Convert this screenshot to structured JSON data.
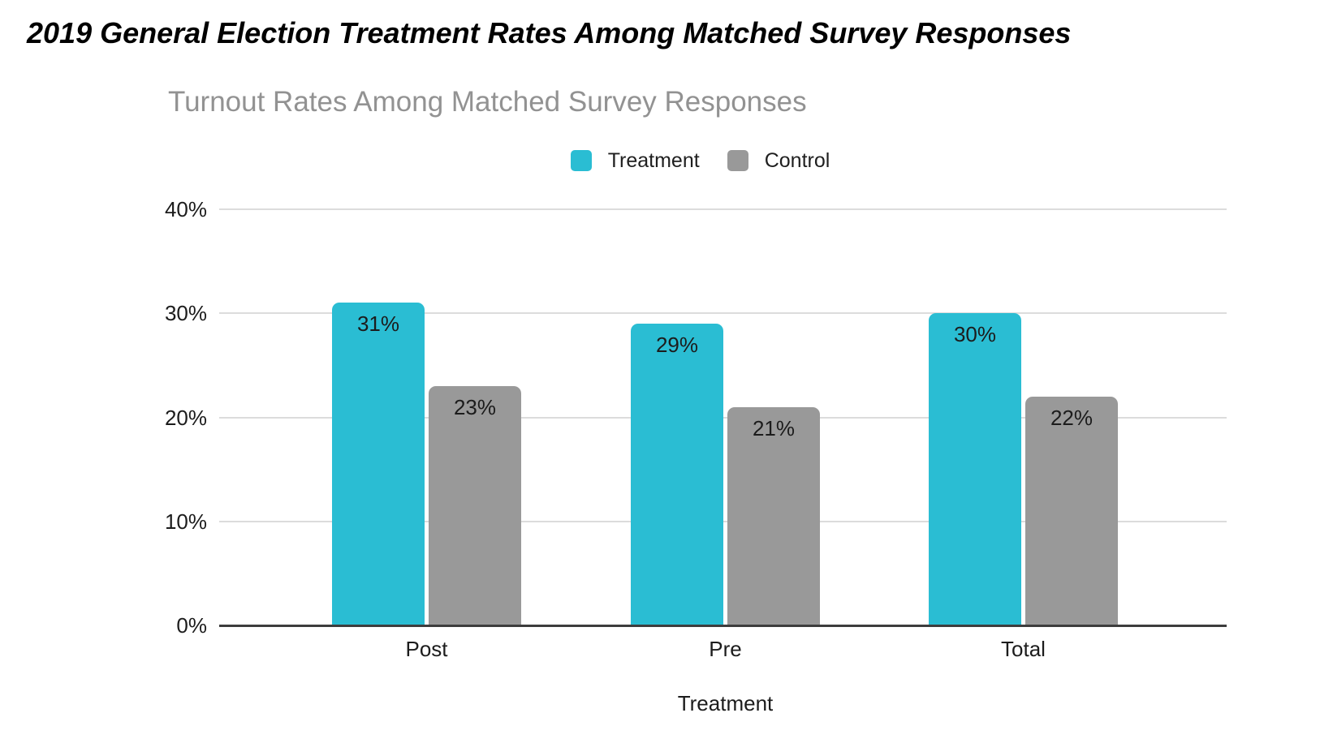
{
  "page": {
    "title": "2019 General Election Treatment Rates Among Matched Survey Responses",
    "background_color": "#ffffff"
  },
  "chart_data": {
    "type": "bar",
    "title": "Turnout Rates Among Matched Survey Responses",
    "title_color": "#929292",
    "categories": [
      "Post",
      "Pre",
      "Total"
    ],
    "series": [
      {
        "name": "Treatment",
        "color": "#2abdd3",
        "values": [
          31,
          29,
          30
        ],
        "value_labels": [
          "31%",
          "29%",
          "30%"
        ]
      },
      {
        "name": "Control",
        "color": "#999999",
        "values": [
          23,
          21,
          22
        ],
        "value_labels": [
          "23%",
          "21%",
          "22%"
        ]
      }
    ],
    "xlabel": "Treatment",
    "ylabel": "",
    "ylim": [
      0,
      40
    ],
    "yticks": [
      {
        "value": 0,
        "label": "0%"
      },
      {
        "value": 10,
        "label": "10%"
      },
      {
        "value": 20,
        "label": "20%"
      },
      {
        "value": 30,
        "label": "30%"
      },
      {
        "value": 40,
        "label": "40%"
      }
    ],
    "grid": true,
    "gridline_color": "#dcdcdc",
    "axis_line_color": "#3d3d3d",
    "text_color": "#1c1c1c",
    "legend_position": "top",
    "value_labels_position": "inside-top"
  }
}
